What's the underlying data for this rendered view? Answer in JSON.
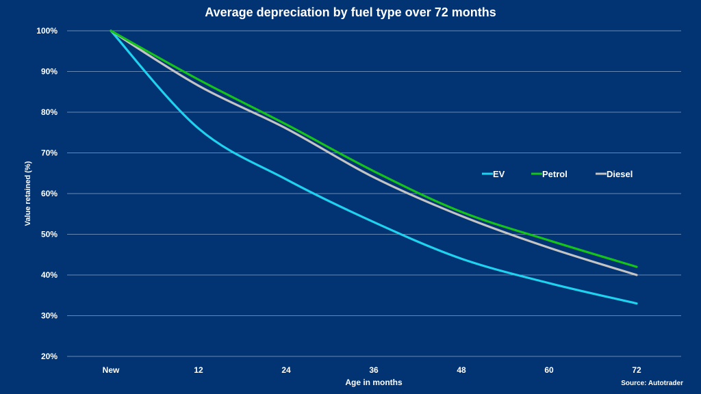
{
  "chart_data": {
    "type": "line",
    "title": "Average depreciation by fuel type over 72 months",
    "xlabel": "Age in months",
    "ylabel": "Value retained (%)",
    "source": "Source: Autotrader",
    "categories": [
      "New",
      "12",
      "24",
      "36",
      "48",
      "60",
      "72"
    ],
    "x": [
      0,
      12,
      24,
      36,
      48,
      60,
      72
    ],
    "yticks": [
      "20%",
      "30%",
      "40%",
      "50%",
      "60%",
      "70%",
      "80%",
      "90%",
      "100%"
    ],
    "ylim": [
      20,
      100
    ],
    "grid": true,
    "legend_position": "right-middle",
    "series": [
      {
        "name": "EV",
        "color": "#1fd3f0",
        "values": [
          100,
          76,
          63.5,
          53,
          44,
          38,
          33
        ]
      },
      {
        "name": "Petrol",
        "color": "#16c31a",
        "values": [
          100,
          88,
          77,
          65.5,
          55.5,
          48.5,
          42
        ]
      },
      {
        "name": "Diesel",
        "color": "#c4c4c4",
        "values": [
          100,
          86.5,
          76,
          64,
          54.5,
          46.7,
          40
        ]
      }
    ]
  }
}
